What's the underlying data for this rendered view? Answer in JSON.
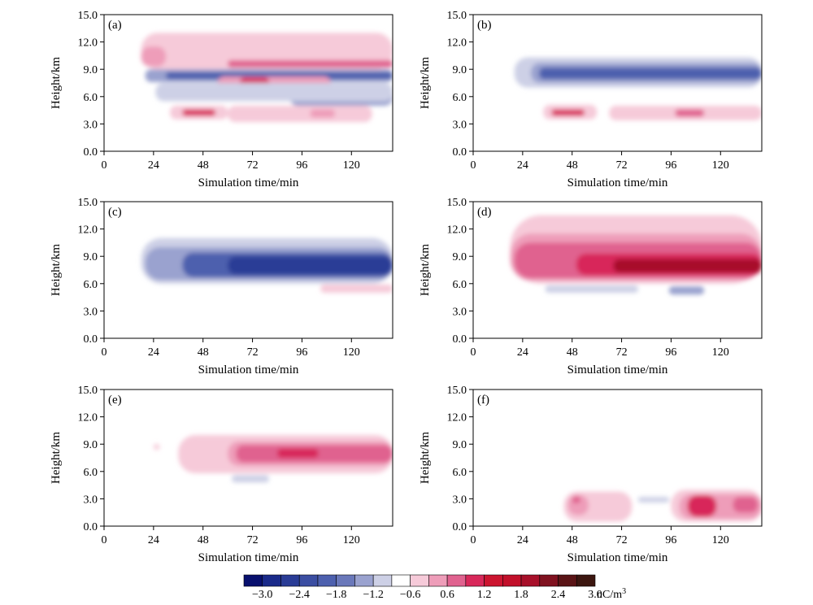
{
  "colors": {
    "scale": [
      "#08106e",
      "#1a2a8a",
      "#2a3c96",
      "#3b4ea2",
      "#4d60ae",
      "#6a78ba",
      "#9aa2cf",
      "#cdd0e6",
      "#ffffff",
      "#f6cad9",
      "#ee9db9",
      "#e0628f",
      "#d8285a",
      "#cc1530",
      "#c2102a",
      "#a8102a",
      "#801220",
      "#5a1416",
      "#3c1610"
    ],
    "negative_ramp": [
      "#cdd0e6",
      "#9aa2cf",
      "#6a78ba",
      "#4d60ae",
      "#3b4ea2",
      "#2a3c96",
      "#08106e"
    ],
    "positive_ramp": [
      "#f6cad9",
      "#ee9db9",
      "#e0628f",
      "#d8285a",
      "#cc1530",
      "#a8102a",
      "#3c1610"
    ]
  },
  "colorbar": {
    "tick_labels": [
      "−3.0",
      "−2.4",
      "−1.8",
      "−1.2",
      "−0.6",
      "0.6",
      "1.2",
      "1.8",
      "2.4",
      "3.0"
    ],
    "unit": "nC/m",
    "unit_exponent": "3"
  },
  "chart_data": [
    {
      "type": "heatmap",
      "panel_label": "(a)",
      "xlabel": "Simulation time/min",
      "ylabel": "Height/km",
      "xlim": [
        0,
        140
      ],
      "ylim": [
        0,
        15
      ],
      "xticks": [
        "0",
        "24",
        "48",
        "72",
        "96",
        "120"
      ],
      "yticks": [
        "0.0",
        "3.0",
        "6.0",
        "9.0",
        "12.0",
        "15.0"
      ],
      "blobs": [
        {
          "t": [
            18,
            140
          ],
          "h": [
            9.0,
            13.0
          ],
          "v": 0.6
        },
        {
          "t": [
            18,
            30
          ],
          "h": [
            9.3,
            11.5
          ],
          "v": 1.2
        },
        {
          "t": [
            60,
            140
          ],
          "h": [
            9.2,
            10.0
          ],
          "v": 1.8
        },
        {
          "t": [
            20,
            140
          ],
          "h": [
            7.6,
            9.0
          ],
          "v": -1.2
        },
        {
          "t": [
            30,
            140
          ],
          "h": [
            7.9,
            8.7
          ],
          "v": -2.4
        },
        {
          "t": [
            55,
            110
          ],
          "h": [
            6.5,
            8.2
          ],
          "v": 1.2
        },
        {
          "t": [
            66,
            80
          ],
          "h": [
            7.1,
            8.1
          ],
          "v": 2.4
        },
        {
          "t": [
            90,
            140
          ],
          "h": [
            5.0,
            7.0
          ],
          "v": -1.2
        },
        {
          "t": [
            25,
            140
          ],
          "h": [
            5.5,
            7.5
          ],
          "v": -0.6
        },
        {
          "t": [
            32,
            60
          ],
          "h": [
            3.5,
            5.0
          ],
          "v": 0.6
        },
        {
          "t": [
            38,
            54
          ],
          "h": [
            3.9,
            4.6
          ],
          "v": 2.4
        },
        {
          "t": [
            60,
            130
          ],
          "h": [
            3.2,
            5.0
          ],
          "v": 0.6
        },
        {
          "t": [
            100,
            112
          ],
          "h": [
            3.7,
            4.6
          ],
          "v": 1.2
        }
      ]
    },
    {
      "type": "heatmap",
      "panel_label": "(b)",
      "xlabel": "Simulation time/min",
      "ylabel": "Height/km",
      "xlim": [
        0,
        140
      ],
      "ylim": [
        0,
        15
      ],
      "xticks": [
        "0",
        "24",
        "48",
        "72",
        "96",
        "120"
      ],
      "yticks": [
        "0.0",
        "3.0",
        "6.0",
        "9.0",
        "12.0",
        "15.0"
      ],
      "blobs": [
        {
          "t": [
            20,
            140
          ],
          "h": [
            7.0,
            10.3
          ],
          "v": -0.6
        },
        {
          "t": [
            28,
            140
          ],
          "h": [
            7.5,
            9.7
          ],
          "v": -1.2
        },
        {
          "t": [
            32,
            140
          ],
          "h": [
            7.9,
            9.2
          ],
          "v": -2.4
        },
        {
          "t": [
            34,
            60
          ],
          "h": [
            3.5,
            5.1
          ],
          "v": 0.6
        },
        {
          "t": [
            38,
            54
          ],
          "h": [
            3.9,
            4.6
          ],
          "v": 2.4
        },
        {
          "t": [
            66,
            140
          ],
          "h": [
            3.4,
            5.0
          ],
          "v": 0.6
        },
        {
          "t": [
            98,
            112
          ],
          "h": [
            3.8,
            4.6
          ],
          "v": 1.8
        }
      ]
    },
    {
      "type": "heatmap",
      "panel_label": "(c)",
      "xlabel": "Simulation time/min",
      "ylabel": "Height/km",
      "xlim": [
        0,
        140
      ],
      "ylim": [
        0,
        15
      ],
      "xticks": [
        "0",
        "24",
        "48",
        "72",
        "96",
        "120"
      ],
      "yticks": [
        "0.0",
        "3.0",
        "6.0",
        "9.0",
        "12.0",
        "15.0"
      ],
      "blobs": [
        {
          "t": [
            18,
            140
          ],
          "h": [
            6.0,
            11.0
          ],
          "v": -0.6
        },
        {
          "t": [
            20,
            140
          ],
          "h": [
            6.4,
            10.0
          ],
          "v": -1.2
        },
        {
          "t": [
            38,
            140
          ],
          "h": [
            6.7,
            9.4
          ],
          "v": -2.4
        },
        {
          "t": [
            60,
            140
          ],
          "h": [
            7.0,
            9.0
          ],
          "v": -3.0
        },
        {
          "t": [
            105,
            140
          ],
          "h": [
            5.0,
            5.9
          ],
          "v": 0.6
        }
      ]
    },
    {
      "type": "heatmap",
      "panel_label": "(d)",
      "xlabel": "Simulation time/min",
      "ylabel": "Height/km",
      "xlim": [
        0,
        140
      ],
      "ylim": [
        0,
        15
      ],
      "xticks": [
        "0",
        "24",
        "48",
        "72",
        "96",
        "120"
      ],
      "yticks": [
        "0.0",
        "3.0",
        "6.0",
        "9.0",
        "12.0",
        "15.0"
      ],
      "blobs": [
        {
          "t": [
            18,
            140
          ],
          "h": [
            6.0,
            13.5
          ],
          "v": 0.6
        },
        {
          "t": [
            18,
            140
          ],
          "h": [
            6.3,
            11.5
          ],
          "v": 1.2
        },
        {
          "t": [
            20,
            140
          ],
          "h": [
            6.6,
            10.5
          ],
          "v": 1.8
        },
        {
          "t": [
            50,
            140
          ],
          "h": [
            6.9,
            9.3
          ],
          "v": 2.4
        },
        {
          "t": [
            68,
            140
          ],
          "h": [
            7.2,
            8.7
          ],
          "v": 3.0
        },
        {
          "t": [
            35,
            80
          ],
          "h": [
            5.0,
            5.8
          ],
          "v": -0.6
        },
        {
          "t": [
            95,
            112
          ],
          "h": [
            4.8,
            5.7
          ],
          "v": -1.2
        }
      ]
    },
    {
      "type": "heatmap",
      "panel_label": "(e)",
      "xlabel": "Simulation time/min",
      "ylabel": "Height/km",
      "xlim": [
        0,
        140
      ],
      "ylim": [
        0,
        15
      ],
      "xticks": [
        "0",
        "24",
        "48",
        "72",
        "96",
        "120"
      ],
      "yticks": [
        "0.0",
        "3.0",
        "6.0",
        "9.0",
        "12.0",
        "15.0"
      ],
      "blobs": [
        {
          "t": [
            36,
            140
          ],
          "h": [
            5.8,
            10.0
          ],
          "v": 0.6
        },
        {
          "t": [
            60,
            140
          ],
          "h": [
            6.6,
            9.3
          ],
          "v": 1.2
        },
        {
          "t": [
            64,
            140
          ],
          "h": [
            7.0,
            8.9
          ],
          "v": 1.8
        },
        {
          "t": [
            84,
            104
          ],
          "h": [
            7.5,
            8.5
          ],
          "v": 2.4
        },
        {
          "t": [
            24,
            27
          ],
          "h": [
            8.4,
            9.0
          ],
          "v": 0.6
        },
        {
          "t": [
            62,
            80
          ],
          "h": [
            4.8,
            5.6
          ],
          "v": -0.6
        }
      ]
    },
    {
      "type": "heatmap",
      "panel_label": "(f)",
      "xlabel": "Simulation time/min",
      "ylabel": "Height/km",
      "xlim": [
        0,
        140
      ],
      "ylim": [
        0,
        15
      ],
      "xticks": [
        "0",
        "24",
        "48",
        "72",
        "96",
        "120"
      ],
      "yticks": [
        "0.0",
        "3.0",
        "6.0",
        "9.0",
        "12.0",
        "15.0"
      ],
      "blobs": [
        {
          "t": [
            44,
            77
          ],
          "h": [
            0.5,
            3.8
          ],
          "v": 0.6
        },
        {
          "t": [
            46,
            56
          ],
          "h": [
            1.2,
            3.4
          ],
          "v": 1.2
        },
        {
          "t": [
            48,
            52
          ],
          "h": [
            2.5,
            3.3
          ],
          "v": 1.8
        },
        {
          "t": [
            96,
            140
          ],
          "h": [
            0.5,
            4.0
          ],
          "v": 0.6
        },
        {
          "t": [
            100,
            140
          ],
          "h": [
            0.8,
            3.5
          ],
          "v": 1.2
        },
        {
          "t": [
            104,
            118
          ],
          "h": [
            1.0,
            3.4
          ],
          "v": 2.4
        },
        {
          "t": [
            126,
            138
          ],
          "h": [
            1.5,
            3.2
          ],
          "v": 1.8
        },
        {
          "t": [
            80,
            95
          ],
          "h": [
            2.6,
            3.2
          ],
          "v": -0.6
        }
      ]
    }
  ]
}
